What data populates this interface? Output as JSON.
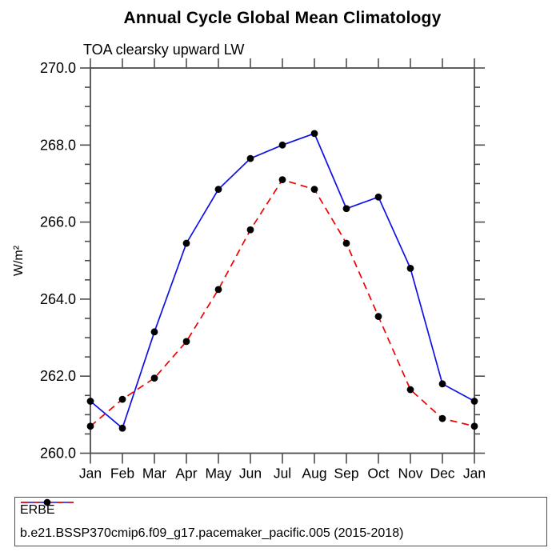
{
  "title": "Annual Cycle Global Mean Climatology",
  "subtitle": "TOA clearsky upward LW",
  "colors": {
    "erbe_line": "#0f0fe8",
    "model_line": "#f00000",
    "marker": "#000000",
    "axis": "#4d4d4d",
    "text": "#000000",
    "background": "#ffffff"
  },
  "chart_data": {
    "type": "line",
    "title": "Annual Cycle Global Mean Climatology",
    "subtitle": "TOA clearsky upward LW",
    "xlabel": "",
    "ylabel": "W/m²",
    "categories": [
      "Jan",
      "Feb",
      "Mar",
      "Apr",
      "May",
      "Jun",
      "Jul",
      "Aug",
      "Sep",
      "Oct",
      "Nov",
      "Dec",
      "Jan"
    ],
    "ylim": [
      260.0,
      270.0
    ],
    "y_major_tick_interval": 2.0,
    "y_minor_tick_interval": 0.5,
    "y_tick_labels": [
      "270.0",
      "268.0",
      "266.0",
      "264.0",
      "262.0",
      "260.0"
    ],
    "grid": "off",
    "legend_position": "bottom-boxed",
    "series": [
      {
        "name": "ERBE",
        "color": "#0f0fe8",
        "line_style": "solid",
        "marker": "filled-circle",
        "marker_color": "#000000",
        "values": [
          261.35,
          260.65,
          263.15,
          265.45,
          266.85,
          267.65,
          268.0,
          268.3,
          266.35,
          266.65,
          264.8,
          261.8,
          261.35
        ]
      },
      {
        "name": "b.e21.BSSP370cmip6.f09_g17.pacemaker_pacific.005 (2015-2018)",
        "color": "#f00000",
        "line_style": "dashed",
        "marker": "filled-circle",
        "marker_color": "#000000",
        "values": [
          260.7,
          261.4,
          261.95,
          262.9,
          264.25,
          265.8,
          267.1,
          266.85,
          265.45,
          263.55,
          261.65,
          260.9,
          260.7
        ]
      }
    ]
  }
}
